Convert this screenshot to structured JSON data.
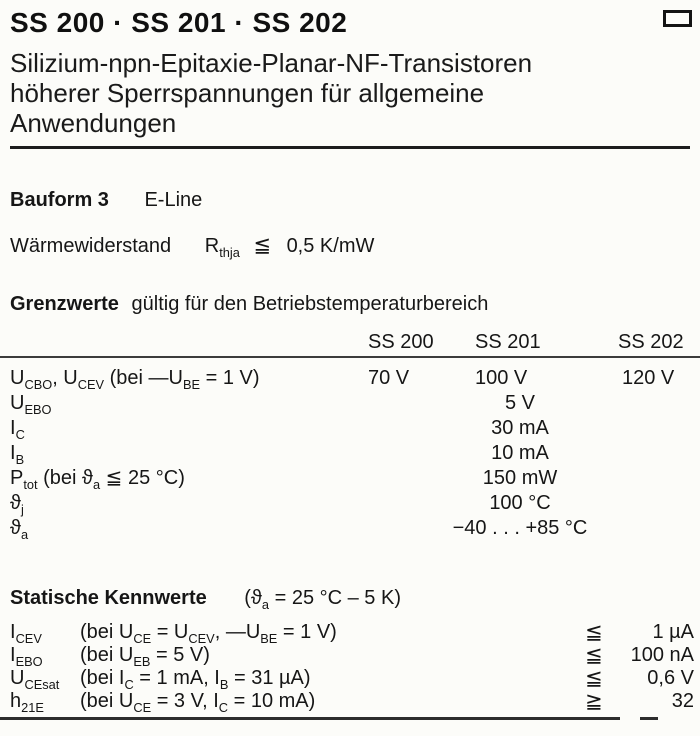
{
  "page": {
    "title": "SS 200 · SS 201 · SS 202",
    "subtitle_lines": [
      "Silizium-npn-Epitaxie-Planar-NF-Transistoren",
      "höherer Sperrspannungen für allgemeine",
      "Anwendungen"
    ],
    "corner_icon": "rectangle-outline"
  },
  "bauform": {
    "label": "Bauform 3",
    "value": "E-Line"
  },
  "thermal": {
    "label": "Wärmewiderstand",
    "symbol": "R_{thja}",
    "relation": "≦",
    "value": "0,5 K/mW"
  },
  "limits": {
    "heading_bold": "Grenzwerte",
    "heading_rest": "gültig für den Betriebstemperaturbereich",
    "columns": [
      "SS 200",
      "SS 201",
      "SS 202"
    ],
    "rows": [
      {
        "param": "U_{CBO}, U_{CEV} (bei —U_{BE} = 1 V)",
        "ss200": "70 V",
        "ss201": "100 V",
        "ss202": "120 V"
      },
      {
        "param": "U_{EBO}",
        "all": "5 V"
      },
      {
        "param": "I_{C}",
        "all": "30 mA"
      },
      {
        "param": "I_{B}",
        "all": "10 mA"
      },
      {
        "param": "P_{tot} (bei ϑ_{a} ≦ 25 °C)",
        "all": "150 mW"
      },
      {
        "param": "ϑ_{j}",
        "all": "100 °C"
      },
      {
        "param": "ϑ_{a}",
        "all": "−40 . . . +85 °C"
      }
    ]
  },
  "statics": {
    "heading_bold": "Statische Kennwerte",
    "heading_condition": "(ϑ_{a} = 25 °C – 5 K)",
    "rows": [
      {
        "param": "I_{CEV}",
        "condition": "(bei U_{CE} = U_{CEV}, —U_{BE} = 1 V)",
        "relation": "≦",
        "value": "1 µA"
      },
      {
        "param": "I_{EBO}",
        "condition": "(bei U_{EB} = 5 V)",
        "relation": "≦",
        "value": "100 nA"
      },
      {
        "param": "U_{CEsat}",
        "condition": "(bei I_{C}  = 1 mA, I_{B} = 31 µA)",
        "relation": "≦",
        "value": "0,6 V"
      },
      {
        "param": "h_{21E}",
        "condition": "(bei U_{CE} = 3 V,  I_{C} = 10 mA)",
        "relation": "≧",
        "value": "32"
      }
    ]
  }
}
